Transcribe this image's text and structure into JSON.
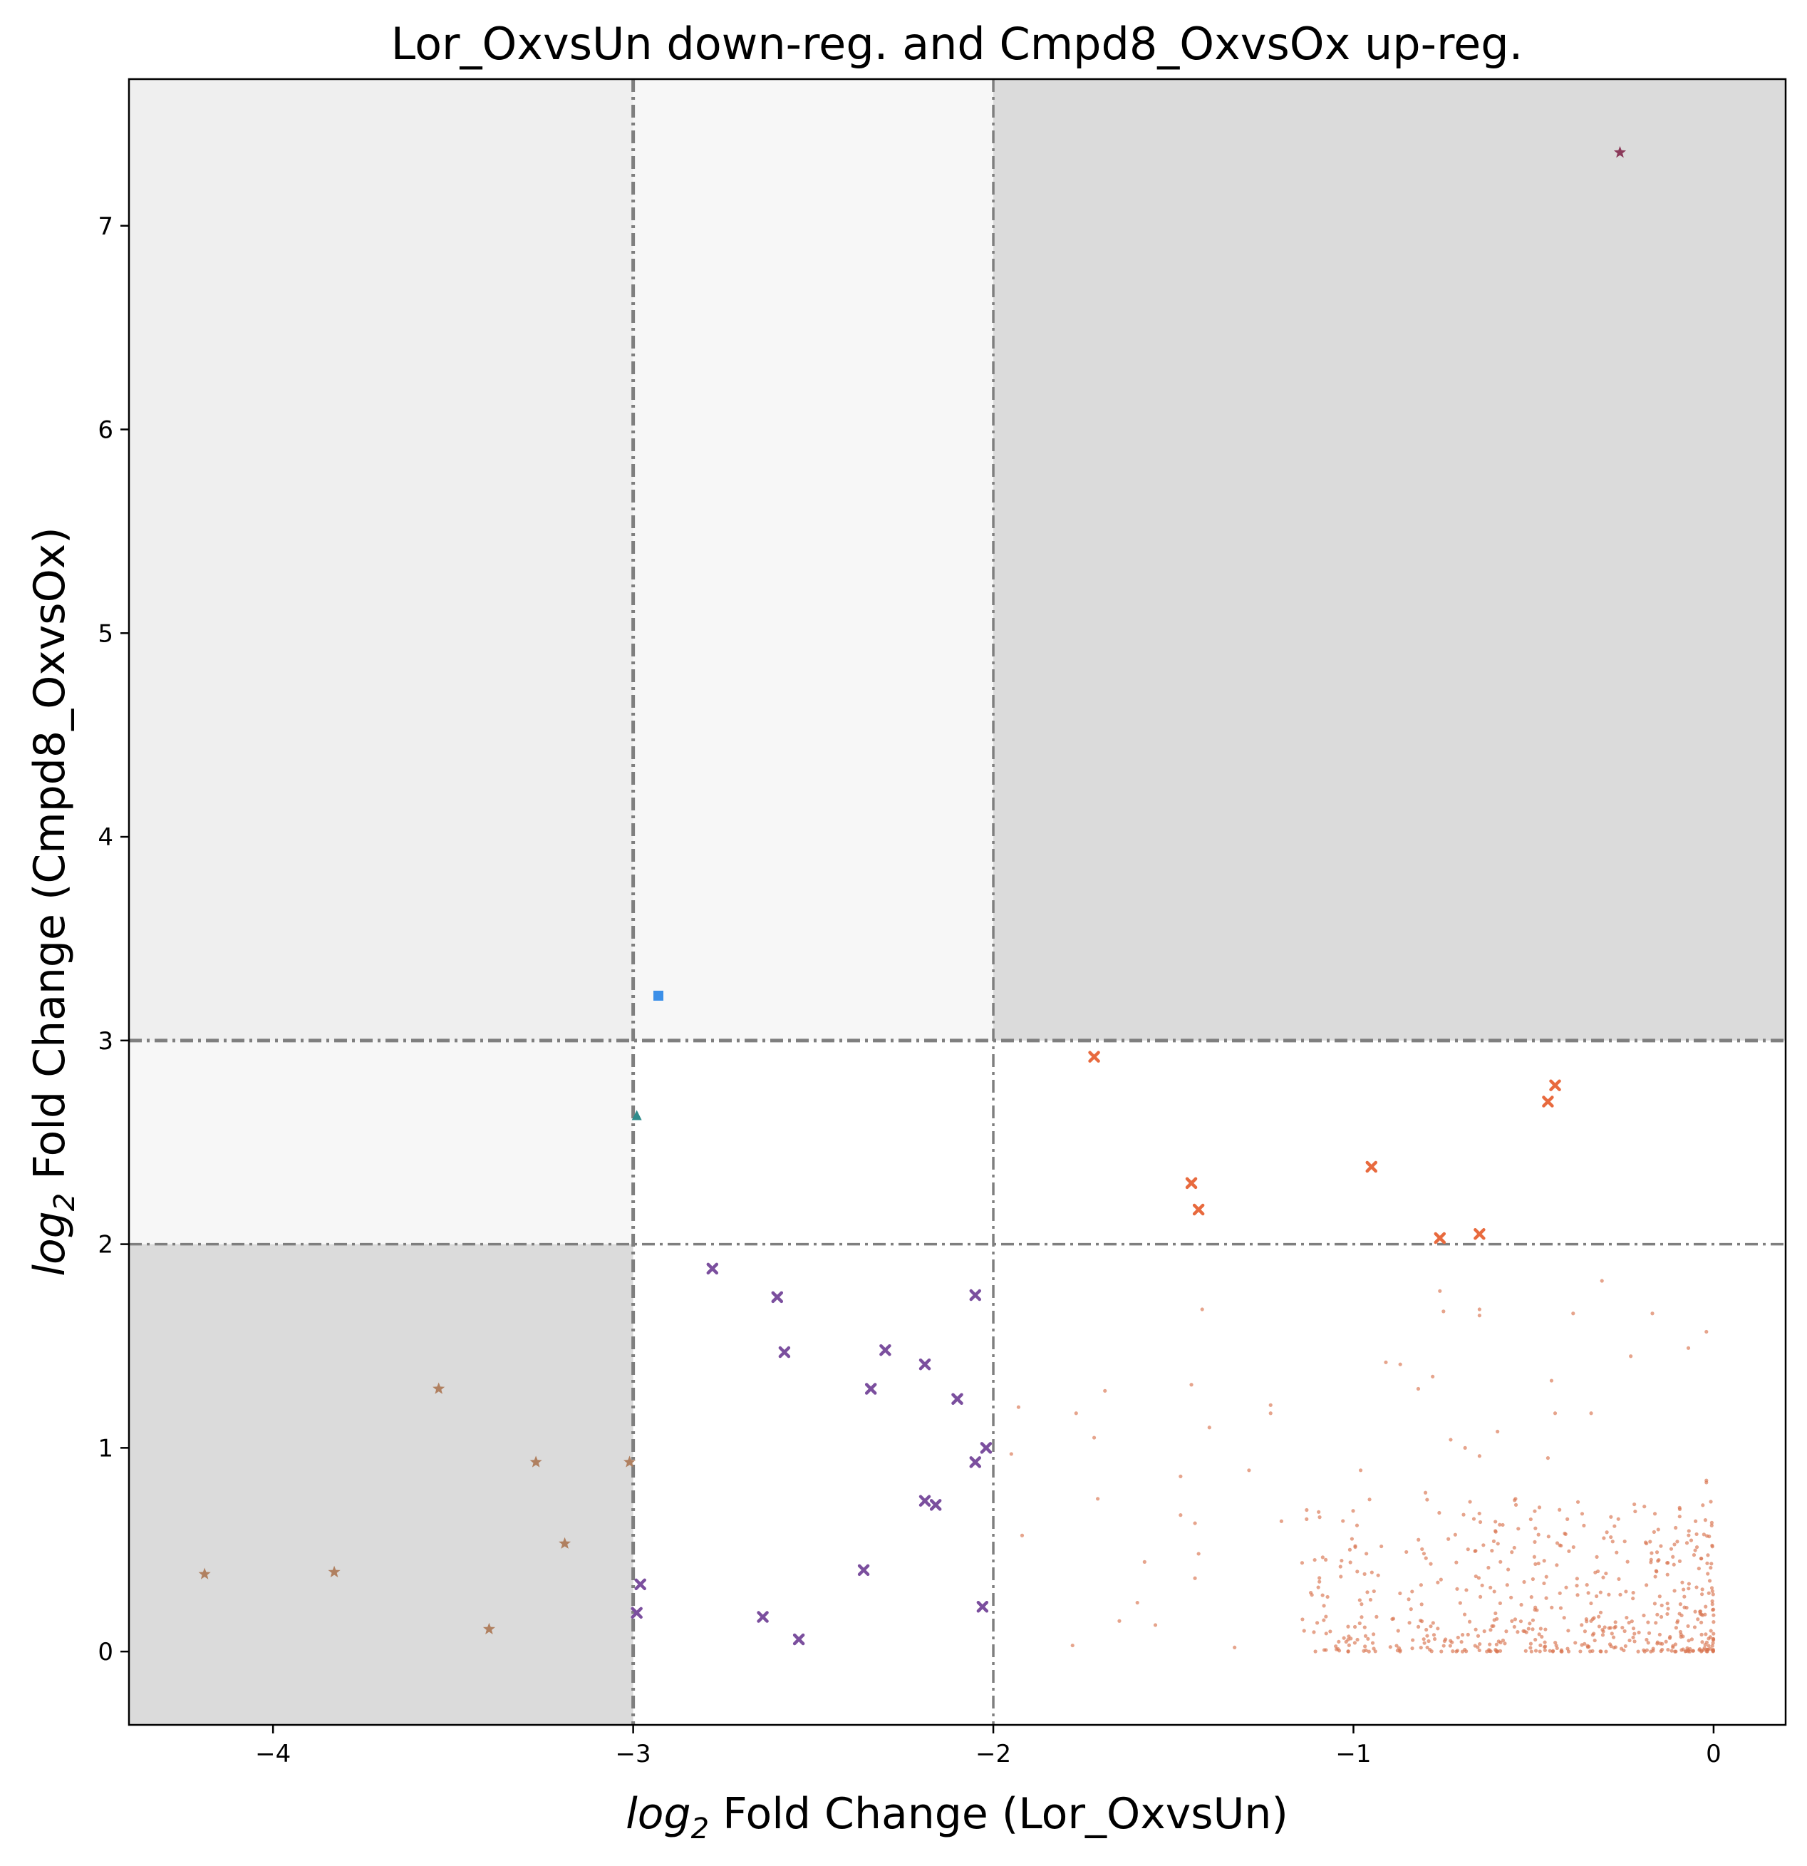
{
  "chart_data": {
    "type": "scatter",
    "title": "Lor_OxvsUn down-reg. and Cmpd8_OxvsOx up-reg.",
    "xlabel": {
      "prefix": "log",
      "sub": "2",
      "suffix": " Fold Change (Lor_OxvsUn)"
    },
    "ylabel": {
      "prefix": "log",
      "sub": "2",
      "suffix": " Fold Change (Cmpd8_OxvsOx)"
    },
    "xlim": [
      -4.4,
      0.2
    ],
    "ylim": [
      -0.36,
      7.72
    ],
    "xticks": [
      -4,
      -3,
      -2,
      -1,
      0
    ],
    "xtick_labels": [
      "−4",
      "−3",
      "−2",
      "−1",
      "0"
    ],
    "yticks": [
      0,
      1,
      2,
      3,
      4,
      5,
      6,
      7
    ],
    "ytick_labels": [
      "0",
      "1",
      "2",
      "3",
      "4",
      "5",
      "6",
      "7"
    ],
    "grid": false,
    "thresholds": {
      "x": [
        -3,
        -2
      ],
      "y": [
        2,
        3
      ]
    },
    "regions": [
      {
        "x": [
          -4.4,
          -3
        ],
        "y": [
          3,
          7.72
        ],
        "color": "#efefef"
      },
      {
        "x": [
          -3,
          -2
        ],
        "y": [
          3,
          7.72
        ],
        "color": "#f7f7f7"
      },
      {
        "x": [
          -2,
          0.2
        ],
        "y": [
          3,
          7.72
        ],
        "color": "#dbdbdb"
      },
      {
        "x": [
          -4.4,
          -3
        ],
        "y": [
          2,
          3
        ],
        "color": "#f7f7f7"
      },
      {
        "x": [
          -4.4,
          -3
        ],
        "y": [
          -0.36,
          2
        ],
        "color": "#dbdbdb"
      }
    ],
    "series": [
      {
        "marker": "star",
        "color": "#8b3a5a",
        "points": [
          [
            -0.26,
            7.36
          ]
        ]
      },
      {
        "marker": "square",
        "color": "#3b8fe8",
        "points": [
          [
            -2.93,
            3.22
          ]
        ]
      },
      {
        "marker": "triangle",
        "color": "#2e8b8b",
        "points": [
          [
            -2.99,
            2.63
          ]
        ]
      },
      {
        "marker": "x",
        "color": "#e86a3e",
        "points": [
          [
            -1.72,
            2.92
          ],
          [
            -0.44,
            2.78
          ],
          [
            -0.46,
            2.7
          ],
          [
            -0.95,
            2.38
          ],
          [
            -1.45,
            2.3
          ],
          [
            -1.43,
            2.17
          ],
          [
            -0.76,
            2.03
          ],
          [
            -0.65,
            2.05
          ]
        ]
      },
      {
        "marker": "x",
        "color": "#7b4f9e",
        "points": [
          [
            -2.78,
            1.88
          ],
          [
            -2.6,
            1.74
          ],
          [
            -2.05,
            1.75
          ],
          [
            -2.58,
            1.47
          ],
          [
            -2.3,
            1.48
          ],
          [
            -2.19,
            1.41
          ],
          [
            -2.34,
            1.29
          ],
          [
            -2.1,
            1.24
          ],
          [
            -2.02,
            1.0
          ],
          [
            -2.05,
            0.93
          ],
          [
            -2.19,
            0.74
          ],
          [
            -2.16,
            0.72
          ],
          [
            -2.36,
            0.4
          ],
          [
            -2.98,
            0.33
          ],
          [
            -2.99,
            0.19
          ],
          [
            -2.64,
            0.17
          ],
          [
            -2.54,
            0.06
          ],
          [
            -2.03,
            0.22
          ]
        ]
      },
      {
        "marker": "star",
        "color": "#b08060",
        "points": [
          [
            -3.54,
            1.29
          ],
          [
            -3.27,
            0.93
          ],
          [
            -3.01,
            0.93
          ],
          [
            -3.19,
            0.53
          ],
          [
            -4.19,
            0.38
          ],
          [
            -3.83,
            0.39
          ],
          [
            -3.4,
            0.11
          ]
        ]
      },
      {
        "marker": "dot",
        "color": "#d9734e",
        "points": [
          [
            -0.76,
            1.77
          ],
          [
            -0.75,
            1.67
          ],
          [
            -0.65,
            1.65
          ],
          [
            -0.65,
            1.68
          ],
          [
            -1.42,
            1.68
          ],
          [
            -0.31,
            1.82
          ],
          [
            -0.39,
            1.66
          ],
          [
            -0.17,
            1.66
          ],
          [
            -0.07,
            1.49
          ],
          [
            -0.02,
            1.57
          ],
          [
            -0.23,
            1.45
          ],
          [
            -0.91,
            1.42
          ],
          [
            -0.87,
            1.41
          ],
          [
            -0.78,
            1.35
          ],
          [
            -0.45,
            1.33
          ],
          [
            -1.45,
            1.31
          ],
          [
            -0.82,
            1.29
          ],
          [
            -1.69,
            1.28
          ],
          [
            -1.23,
            1.21
          ],
          [
            -1.23,
            1.17
          ],
          [
            -1.93,
            1.2
          ],
          [
            -1.77,
            1.17
          ],
          [
            -1.4,
            1.1
          ],
          [
            -0.44,
            1.17
          ],
          [
            -0.34,
            1.17
          ],
          [
            -0.6,
            1.08
          ],
          [
            -1.72,
            1.05
          ],
          [
            -0.73,
            1.04
          ],
          [
            -0.69,
            1.0
          ],
          [
            -0.65,
            0.96
          ],
          [
            -0.46,
            0.95
          ],
          [
            -1.95,
            0.97
          ],
          [
            -0.02,
            0.84
          ],
          [
            -0.02,
            0.83
          ],
          [
            -1.29,
            0.89
          ],
          [
            -0.98,
            0.89
          ],
          [
            -1.48,
            0.86
          ],
          [
            -0.8,
            0.78
          ],
          [
            -0.55,
            0.75
          ],
          [
            -1.71,
            0.75
          ],
          [
            -1.48,
            0.67
          ],
          [
            -1.13,
            0.65
          ],
          [
            -1.2,
            0.64
          ],
          [
            -1.44,
            0.63
          ],
          [
            -0.05,
            0.64
          ],
          [
            -1.92,
            0.57
          ],
          [
            -1.01,
            0.5
          ],
          [
            -1.58,
            0.44
          ],
          [
            -1.43,
            0.48
          ],
          [
            -1.55,
            0.13
          ],
          [
            -1.6,
            0.24
          ],
          [
            -1.33,
            0.02
          ],
          [
            -1.78,
            0.03
          ],
          [
            -1.65,
            0.15
          ],
          [
            -1.44,
            0.36
          ]
        ]
      }
    ],
    "cloud": {
      "color": "#d9734e",
      "n": 560,
      "x_range": [
        -1.15,
        0.0
      ],
      "y_range": [
        0.0,
        0.75
      ]
    }
  }
}
